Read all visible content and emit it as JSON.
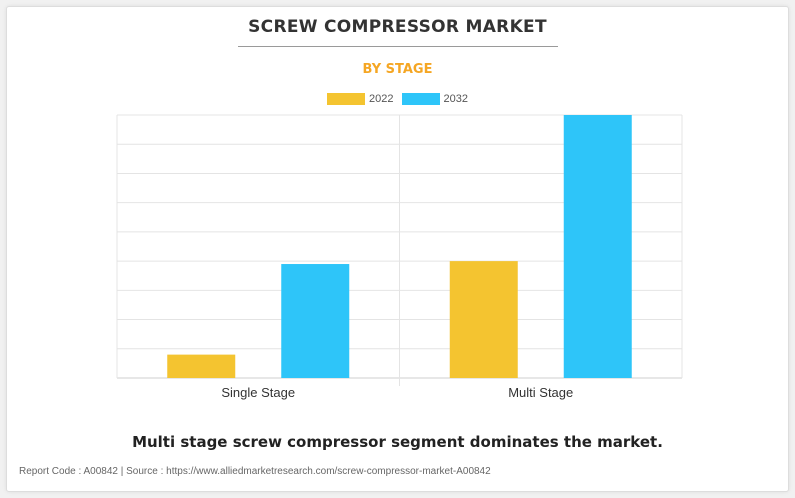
{
  "header": {
    "title": "SCREW COMPRESSOR MARKET",
    "subtitle": "BY STAGE"
  },
  "colors": {
    "series_2022": "#f4c430",
    "series_2032": "#2ec5f9",
    "subtitle": "#f5a623",
    "grid": "#e4e4e4"
  },
  "chart_data": {
    "type": "bar",
    "title": "",
    "xlabel": "",
    "ylabel": "",
    "categories": [
      "Single Stage",
      "Multi Stage"
    ],
    "series": [
      {
        "name": "2022",
        "values": [
          0.8,
          4.0
        ]
      },
      {
        "name": "2032",
        "values": [
          3.9,
          9.0
        ]
      }
    ],
    "ylim": [
      0,
      9
    ],
    "grid": true,
    "legend": "top-center",
    "y_tick_labels_shown": false
  },
  "footer": {
    "note": "Multi stage screw compressor segment dominates the market.",
    "source": "Report Code : A00842  |  Source : https://www.alliedmarketresearch.com/screw-compressor-market-A00842"
  }
}
